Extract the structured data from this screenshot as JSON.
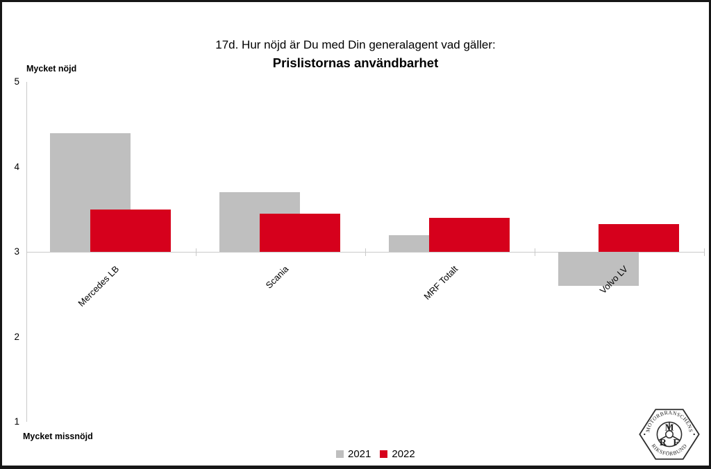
{
  "title": {
    "line1": "17d. Hur nöjd är Du med Din generalagent vad gäller:",
    "line2": "Prislistornas användbarhet"
  },
  "y_axis": {
    "top_label": "Mycket nöjd",
    "bottom_label": "Mycket missnöjd",
    "tick_labels": [
      "5",
      "4",
      "3",
      "2",
      "1"
    ]
  },
  "legend": [
    {
      "label": "2021",
      "color": "#bfbfbf"
    },
    {
      "label": "2022",
      "color": "#d6001c"
    }
  ],
  "colors": {
    "series_2021": "#bfbfbf",
    "series_2022": "#d6001c",
    "axis": "#c9c9c9",
    "text": "#000000",
    "frame_border": "#161616"
  },
  "chart_data": {
    "type": "bar",
    "title": "17d. Hur nöjd är Du med Din generalagent vad gäller: Prislistornas användbarhet",
    "categories": [
      "Mercedes LB",
      "Scania",
      "MRF Totalt",
      "Volvo LV"
    ],
    "series": [
      {
        "name": "2021",
        "color": "#bfbfbf",
        "values": [
          4.4,
          3.7,
          3.2,
          2.6
        ]
      },
      {
        "name": "2022",
        "color": "#d6001c",
        "values": [
          3.5,
          3.45,
          3.4,
          3.33
        ]
      }
    ],
    "ylim": [
      1,
      5
    ],
    "yticks": [
      1,
      2,
      3,
      4,
      5
    ],
    "baseline": 3,
    "ylabel_top": "Mycket nöjd",
    "ylabel_bottom": "Mycket missnöjd",
    "grid": false,
    "legend_position": "bottom"
  },
  "logo": {
    "arc_top": "MOTORBRANSCHENS",
    "arc_bottom": "RIKSFÖRBUND",
    "monogram": [
      "M",
      "R",
      "F"
    ]
  }
}
